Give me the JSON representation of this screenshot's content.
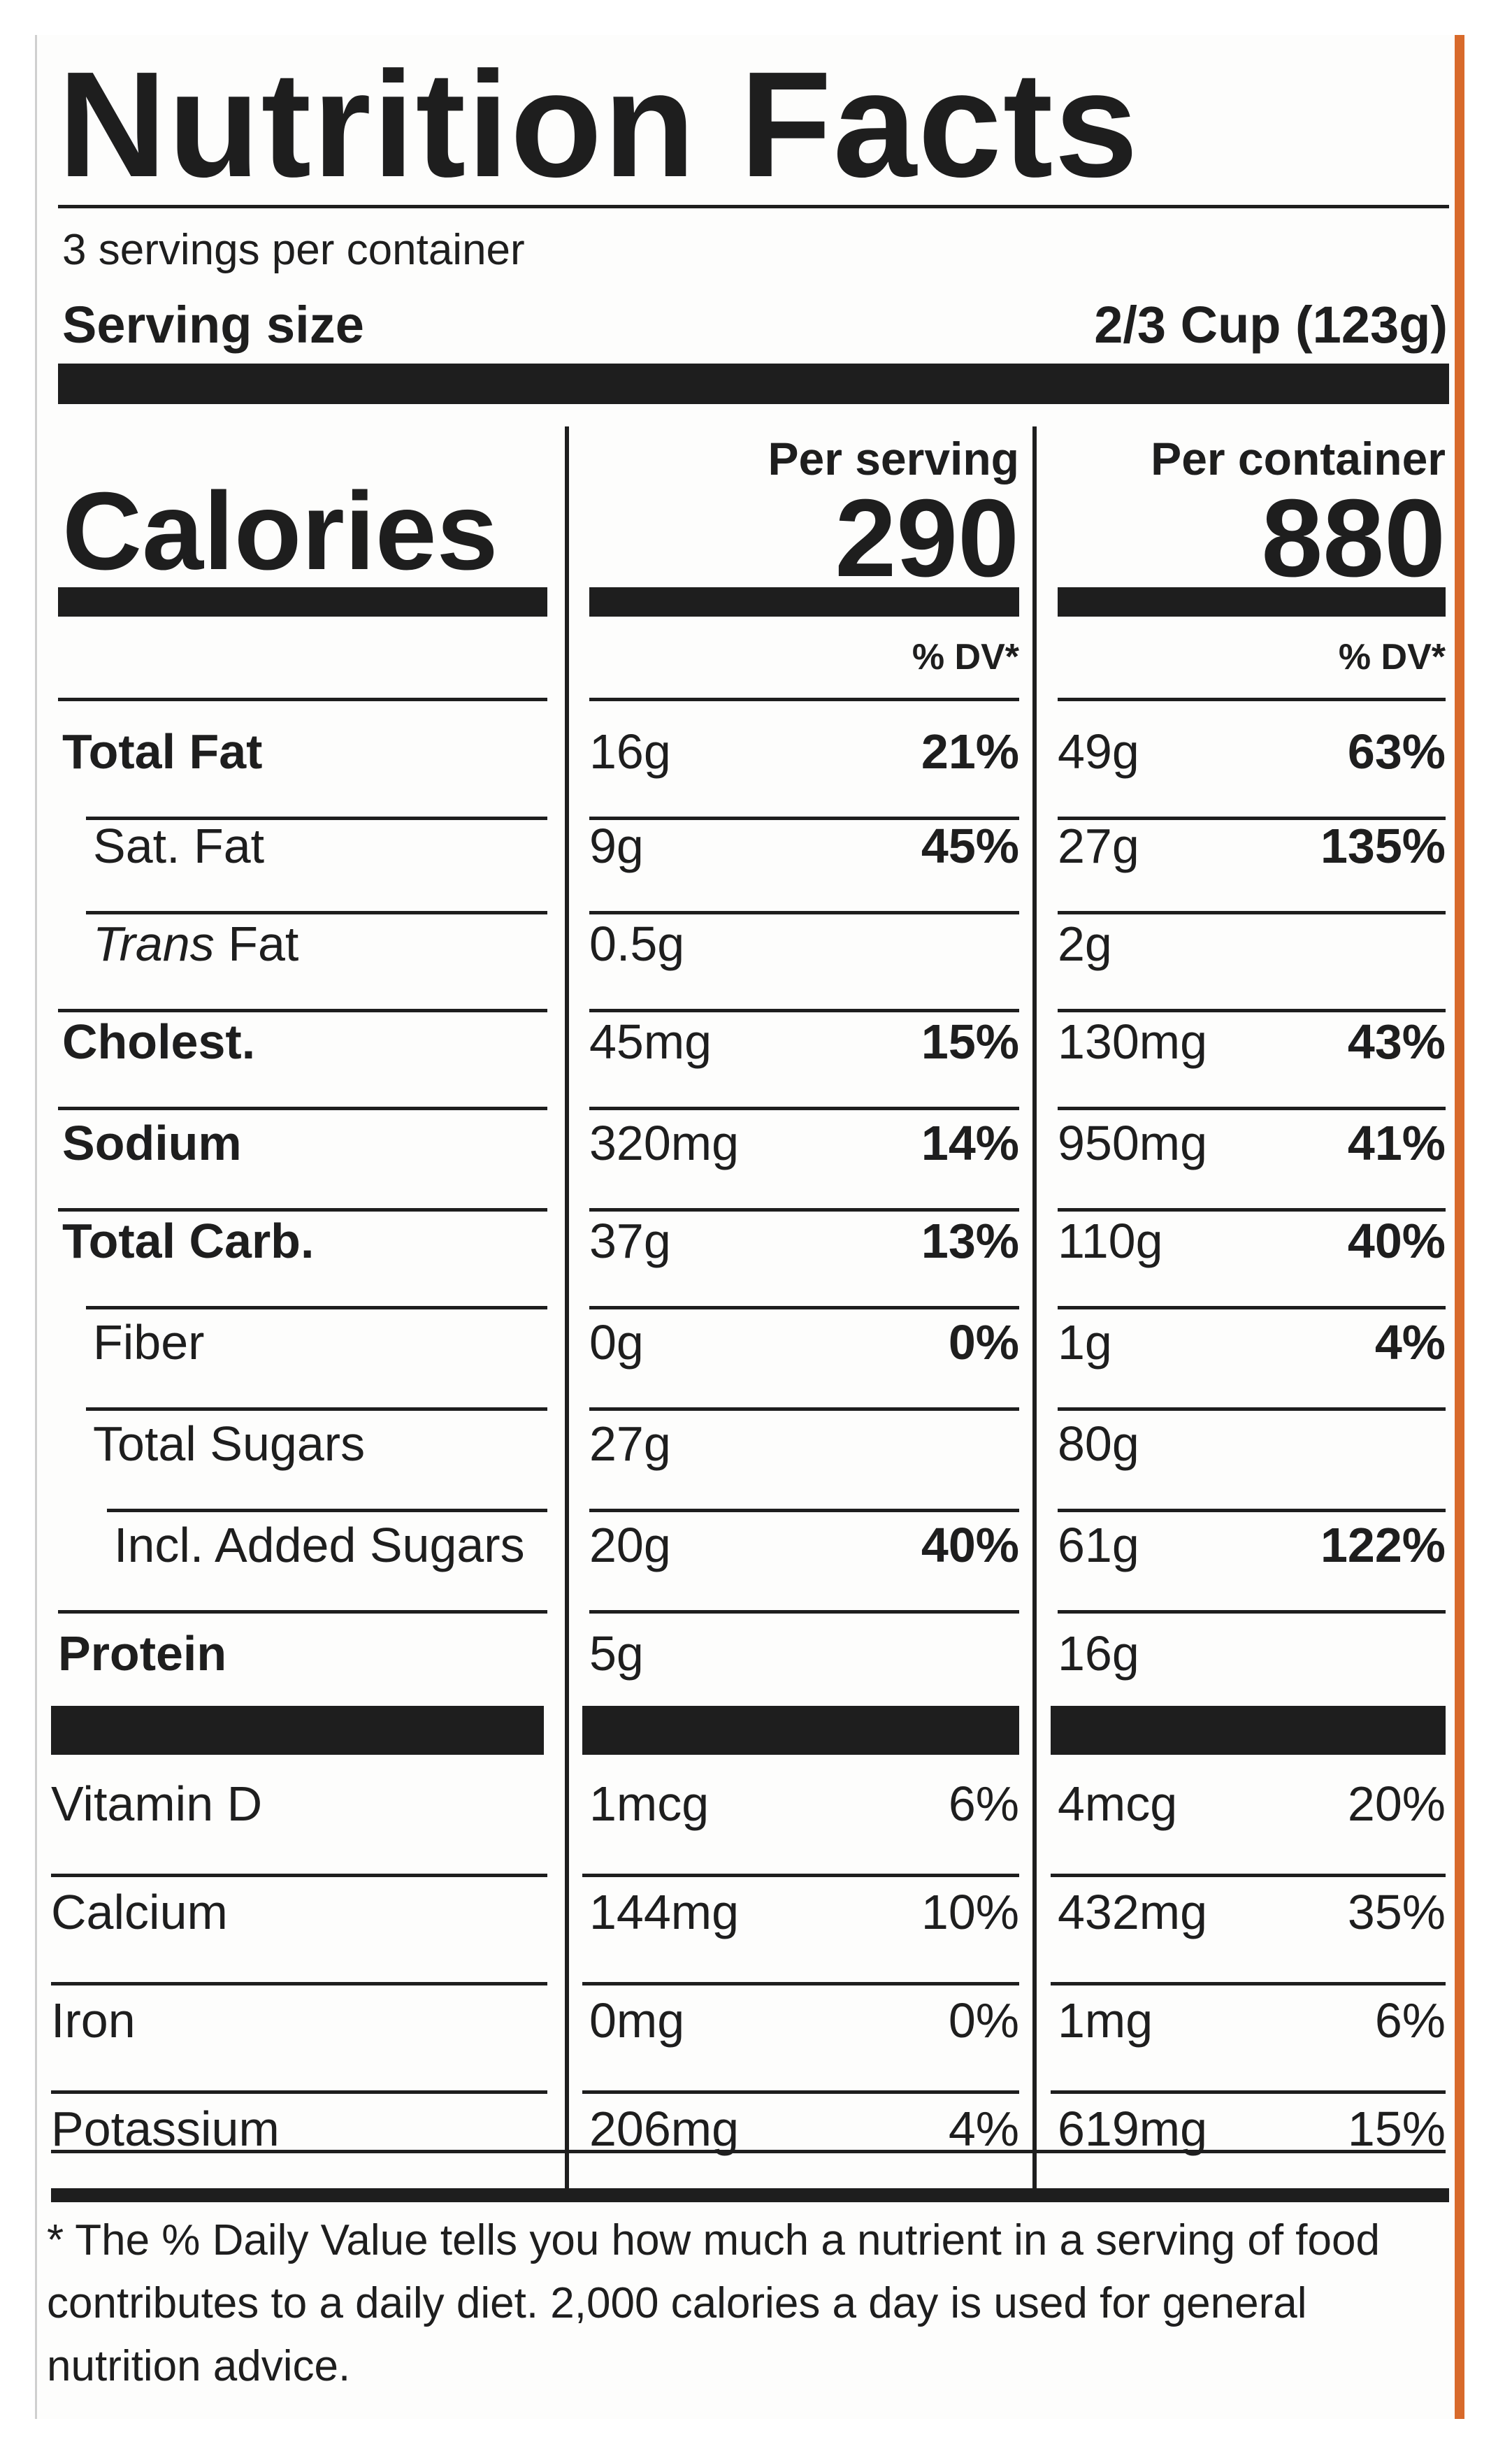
{
  "title": "Nutrition Facts",
  "servings_per_container": "3 servings per container",
  "serving_size_label": "Serving size",
  "serving_size_value": "2/3 Cup (123g)",
  "calories_label": "Calories",
  "per_serving": {
    "heading": "Per serving",
    "calories": "290",
    "dv_label": "% DV*"
  },
  "per_container": {
    "heading": "Per container",
    "calories": "880",
    "dv_label": "% DV*"
  },
  "nutrients": [
    {
      "name": "Total Fat",
      "serving_amount": "16g",
      "serving_dv": "21%",
      "container_amount": "49g",
      "container_dv": "63%"
    },
    {
      "name": "Sat. Fat",
      "serving_amount": "9g",
      "serving_dv": "45%",
      "container_amount": "27g",
      "container_dv": "135%"
    },
    {
      "name": "Trans Fat",
      "serving_amount": "0.5g",
      "serving_dv": "",
      "container_amount": "2g",
      "container_dv": ""
    },
    {
      "name": "Cholest.",
      "serving_amount": "45mg",
      "serving_dv": "15%",
      "container_amount": "130mg",
      "container_dv": "43%"
    },
    {
      "name": "Sodium",
      "serving_amount": "320mg",
      "serving_dv": "14%",
      "container_amount": "950mg",
      "container_dv": "41%"
    },
    {
      "name": "Total Carb.",
      "serving_amount": "37g",
      "serving_dv": "13%",
      "container_amount": "110g",
      "container_dv": "40%"
    },
    {
      "name": "Fiber",
      "serving_amount": "0g",
      "serving_dv": "0%",
      "container_amount": "1g",
      "container_dv": "4%"
    },
    {
      "name": "Total Sugars",
      "serving_amount": "27g",
      "serving_dv": "",
      "container_amount": "80g",
      "container_dv": ""
    },
    {
      "name": "Incl. Added Sugars",
      "serving_amount": "20g",
      "serving_dv": "40%",
      "container_amount": "61g",
      "container_dv": "122%"
    },
    {
      "name": "Protein",
      "serving_amount": "5g",
      "serving_dv": "",
      "container_amount": "16g",
      "container_dv": ""
    }
  ],
  "vitamins": [
    {
      "name": "Vitamin D",
      "serving_amount": "1mcg",
      "serving_dv": "6%",
      "container_amount": "4mcg",
      "container_dv": "20%"
    },
    {
      "name": "Calcium",
      "serving_amount": "144mg",
      "serving_dv": "10%",
      "container_amount": "432mg",
      "container_dv": "35%"
    },
    {
      "name": "Iron",
      "serving_amount": "0mg",
      "serving_dv": "0%",
      "container_amount": "1mg",
      "container_dv": "6%"
    },
    {
      "name": "Potassium",
      "serving_amount": "206mg",
      "serving_dv": "4%",
      "container_amount": "619mg",
      "container_dv": "15%"
    }
  ],
  "footnote": {
    "line1": "* The % Daily Value tells you how much a nutrient in a serving of food",
    "line2": "contributes to a daily diet. 2,000 calories a day is used for general",
    "line3": "nutrition advice."
  }
}
